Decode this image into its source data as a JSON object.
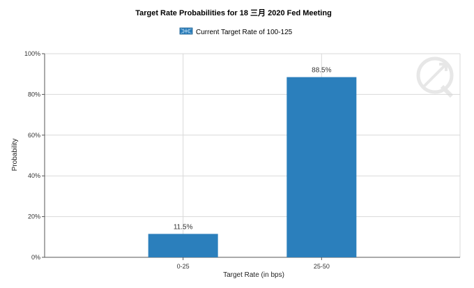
{
  "chart_data": {
    "type": "bar",
    "title": "Target Rate Probabilities for 18 三月 2020 Fed Meeting",
    "legend": [
      "Current Target Rate of 100-125"
    ],
    "categories": [
      "0-25",
      "25-50"
    ],
    "series": [
      {
        "name": "Current Target Rate of 100-125",
        "values": [
          11.5,
          88.5
        ]
      }
    ],
    "data_labels": [
      "11.5%",
      "88.5%"
    ],
    "xlabel": "Target Rate (in bps)",
    "ylabel": "Probability",
    "ylim": [
      0,
      100
    ],
    "yticks": [
      "0%",
      "20%",
      "40%",
      "60%",
      "80%",
      "100%"
    ],
    "ytick_values": [
      0,
      20,
      40,
      60,
      80,
      100
    ],
    "grid": true,
    "legend_position": "top-center",
    "colors": {
      "bar": "#2b7fbc",
      "grid": "#d9d9d9",
      "axis": "#555555"
    }
  }
}
